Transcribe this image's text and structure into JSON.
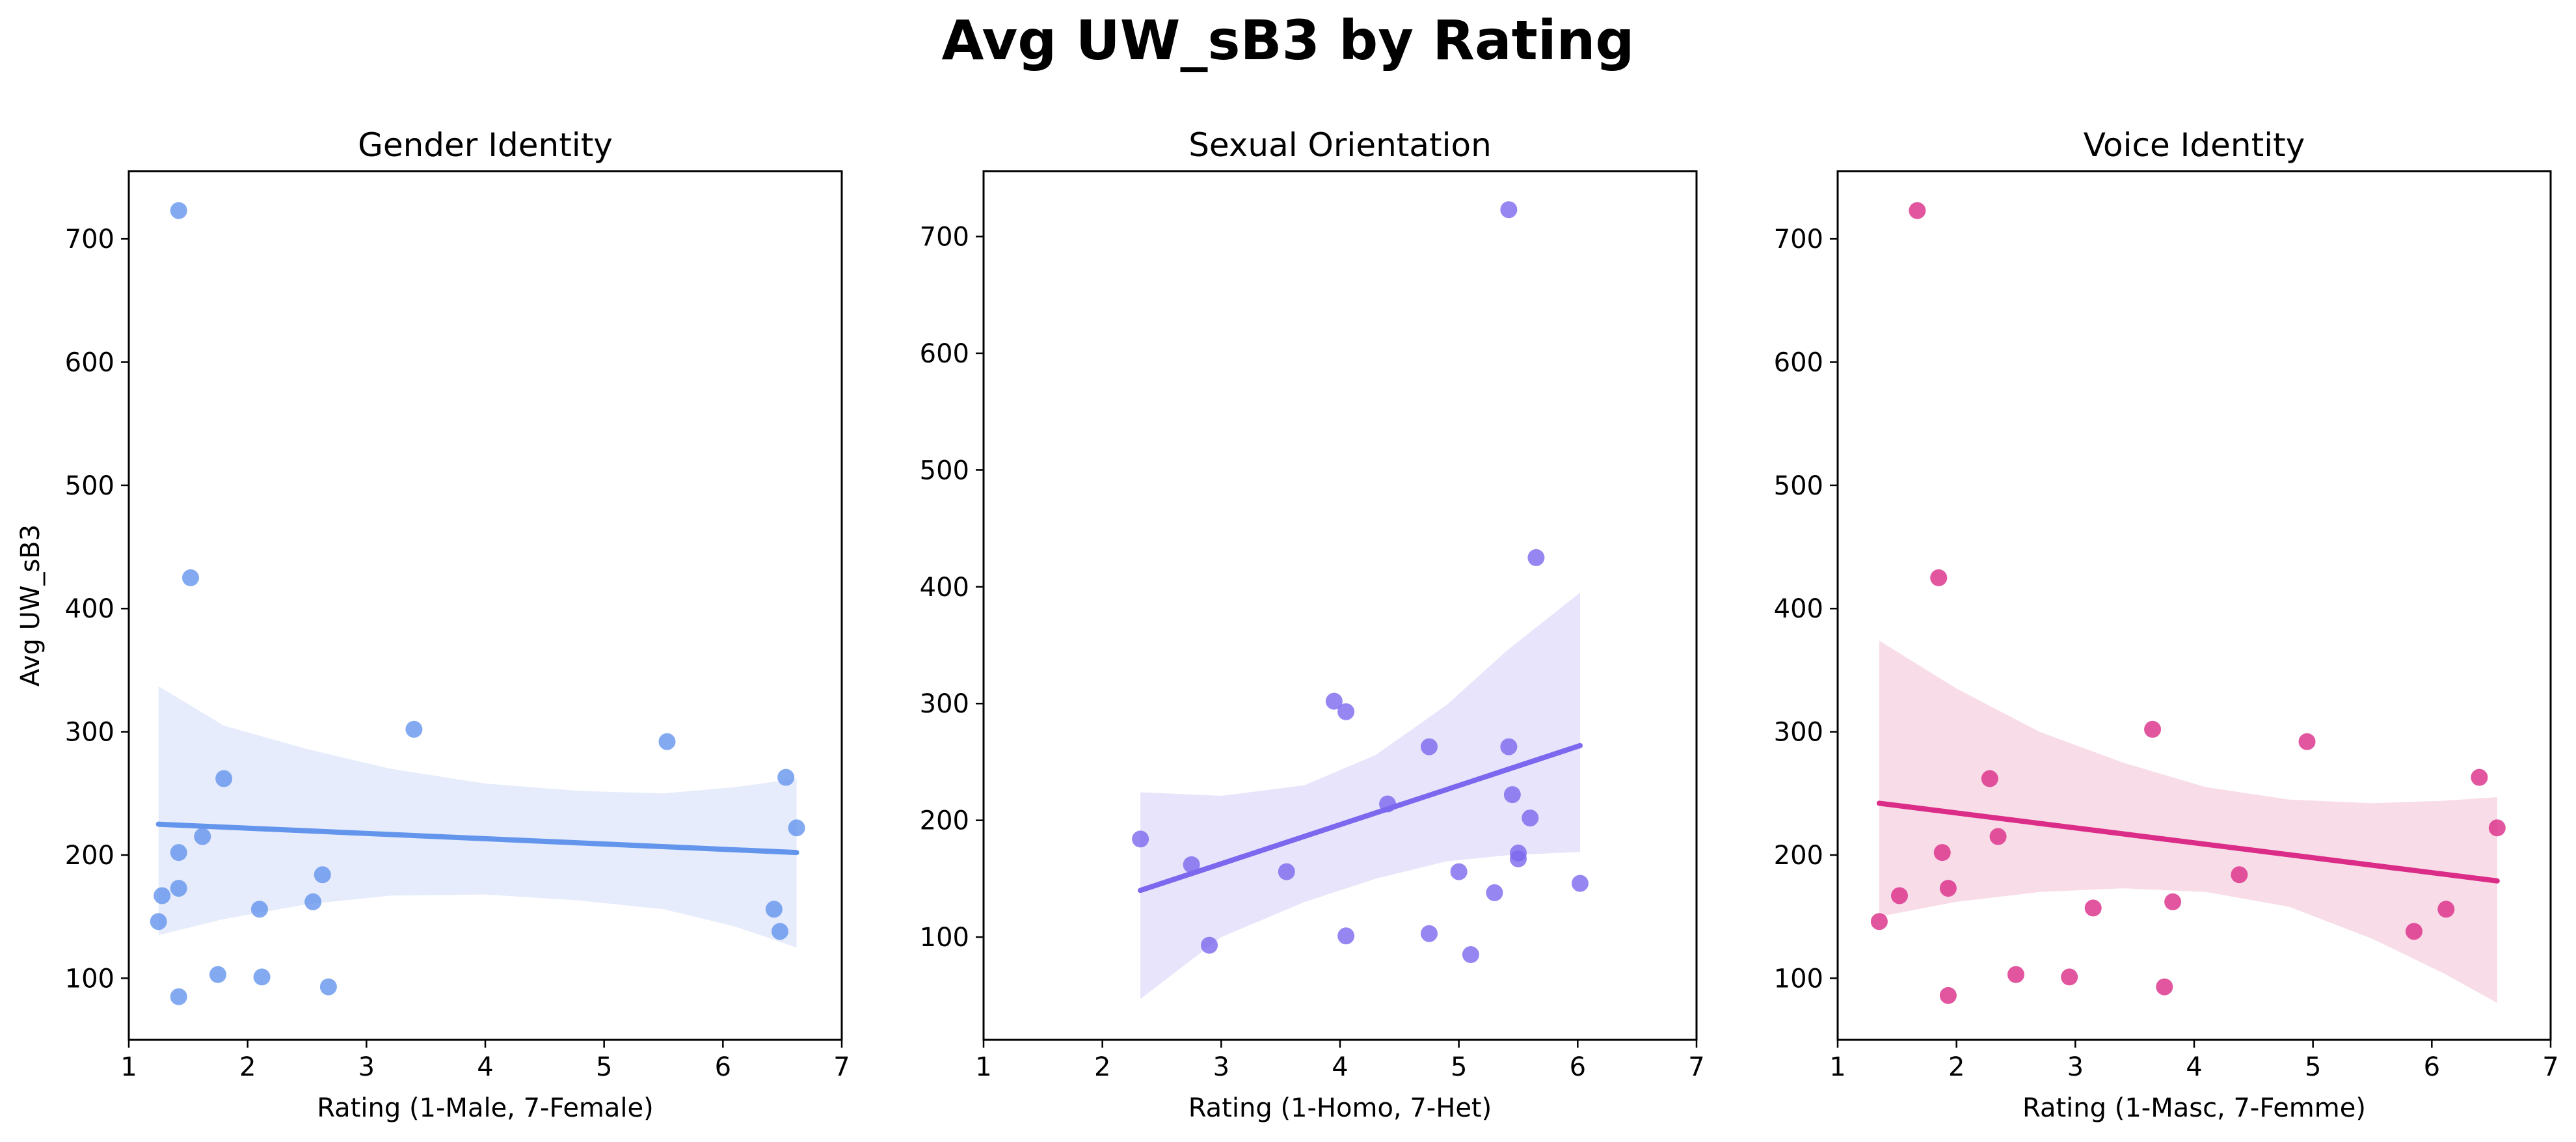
{
  "figure": {
    "title": "Avg UW_sB3 by Rating"
  },
  "chart_data": [
    {
      "type": "scatter",
      "title": "Gender Identity",
      "xlabel": "Rating (1-Male, 7-Female)",
      "ylabel": "Avg UW_sB3",
      "xlim": [
        1,
        7
      ],
      "ylim": [
        50,
        755
      ],
      "xticks": [
        1,
        2,
        3,
        4,
        5,
        6,
        7
      ],
      "yticks": [
        100,
        200,
        300,
        400,
        500,
        600,
        700
      ],
      "grid": false,
      "color": "#6495ED",
      "band_color": "#E6ECFB",
      "points": [
        [
          1.42,
          723
        ],
        [
          1.52,
          425
        ],
        [
          3.4,
          302
        ],
        [
          5.53,
          292
        ],
        [
          6.53,
          263
        ],
        [
          1.8,
          262
        ],
        [
          6.62,
          222
        ],
        [
          1.62,
          215
        ],
        [
          1.42,
          202
        ],
        [
          2.63,
          184
        ],
        [
          1.42,
          173
        ],
        [
          1.28,
          167
        ],
        [
          2.55,
          162
        ],
        [
          2.1,
          156
        ],
        [
          6.43,
          156
        ],
        [
          1.25,
          146
        ],
        [
          6.48,
          138
        ],
        [
          1.75,
          103
        ],
        [
          2.12,
          101
        ],
        [
          2.68,
          93
        ],
        [
          1.42,
          85
        ]
      ],
      "fit": {
        "x": [
          1.25,
          6.62
        ],
        "y": [
          225,
          202
        ]
      },
      "band": {
        "x": [
          1.25,
          1.8,
          2.5,
          3.2,
          4.0,
          4.8,
          5.5,
          6.1,
          6.62
        ],
        "upper": [
          337,
          305,
          286,
          270,
          258,
          252,
          250,
          255,
          262
        ],
        "lower": [
          135,
          148,
          160,
          167,
          168,
          163,
          156,
          142,
          125
        ]
      }
    },
    {
      "type": "scatter",
      "title": "Sexual Orientation",
      "xlabel": "Rating (1-Homo, 7-Het)",
      "ylabel": "",
      "xlim": [
        1,
        7
      ],
      "ylim": [
        12,
        756
      ],
      "xticks": [
        1,
        2,
        3,
        4,
        5,
        6,
        7
      ],
      "yticks": [
        100,
        200,
        300,
        400,
        500,
        600,
        700
      ],
      "grid": false,
      "color": "#7B68EE",
      "band_color": "#E8E4FB",
      "points": [
        [
          5.42,
          723
        ],
        [
          5.65,
          425
        ],
        [
          3.95,
          302
        ],
        [
          4.05,
          293
        ],
        [
          4.75,
          263
        ],
        [
          5.42,
          263
        ],
        [
          5.45,
          222
        ],
        [
          4.4,
          214
        ],
        [
          5.6,
          202
        ],
        [
          2.32,
          184
        ],
        [
          5.5,
          172
        ],
        [
          5.5,
          167
        ],
        [
          2.75,
          162
        ],
        [
          3.55,
          156
        ],
        [
          5.0,
          156
        ],
        [
          6.02,
          146
        ],
        [
          5.3,
          138
        ],
        [
          4.75,
          103
        ],
        [
          4.05,
          101
        ],
        [
          2.9,
          93
        ],
        [
          5.1,
          85
        ]
      ],
      "fit": {
        "x": [
          2.32,
          6.02
        ],
        "y": [
          140,
          264
        ]
      },
      "band": {
        "x": [
          2.32,
          3.0,
          3.7,
          4.3,
          4.9,
          5.4,
          6.02
        ],
        "upper": [
          224,
          221,
          230,
          256,
          299,
          345,
          395
        ],
        "lower": [
          47,
          100,
          130,
          150,
          165,
          170,
          173
        ]
      }
    },
    {
      "type": "scatter",
      "title": "Voice Identity",
      "xlabel": "Rating (1-Masc, 7-Femme)",
      "ylabel": "",
      "xlim": [
        1,
        7
      ],
      "ylim": [
        50,
        755
      ],
      "xticks": [
        1,
        2,
        3,
        4,
        5,
        6,
        7
      ],
      "yticks": [
        100,
        200,
        300,
        400,
        500,
        600,
        700
      ],
      "grid": false,
      "color": "#DB2C87",
      "band_color": "#F8DCE8",
      "points": [
        [
          1.67,
          723
        ],
        [
          1.85,
          425
        ],
        [
          3.65,
          302
        ],
        [
          4.95,
          292
        ],
        [
          6.4,
          263
        ],
        [
          2.28,
          262
        ],
        [
          6.55,
          222
        ],
        [
          2.35,
          215
        ],
        [
          1.88,
          202
        ],
        [
          4.38,
          184
        ],
        [
          1.93,
          173
        ],
        [
          1.52,
          167
        ],
        [
          3.82,
          162
        ],
        [
          3.15,
          157
        ],
        [
          6.12,
          156
        ],
        [
          1.35,
          146
        ],
        [
          5.85,
          138
        ],
        [
          2.5,
          103
        ],
        [
          2.95,
          101
        ],
        [
          3.75,
          93
        ],
        [
          1.93,
          86
        ]
      ],
      "fit": {
        "x": [
          1.35,
          6.55
        ],
        "y": [
          242,
          179
        ]
      },
      "band": {
        "x": [
          1.35,
          2.0,
          2.7,
          3.4,
          4.1,
          4.8,
          5.5,
          6.1,
          6.55
        ],
        "upper": [
          374,
          335,
          300,
          275,
          255,
          245,
          242,
          244,
          247
        ],
        "lower": [
          150,
          162,
          170,
          173,
          170,
          158,
          132,
          104,
          80
        ]
      }
    }
  ]
}
